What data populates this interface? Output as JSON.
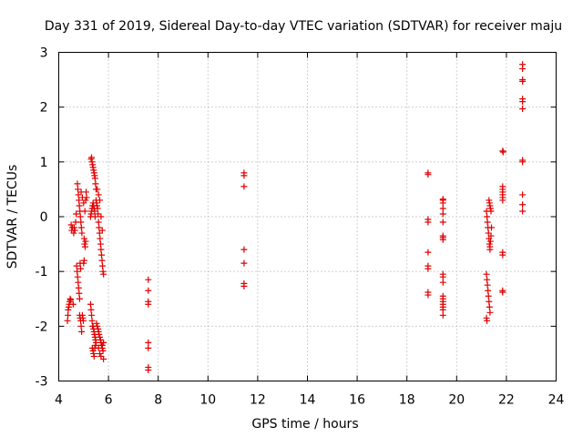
{
  "chart_data": {
    "type": "scatter",
    "title": "Day 331 of 2019, Sidereal Day-to-day VTEC variation (SDTVAR) for receiver maju",
    "xlabel": "GPS time / hours",
    "ylabel": "SDTVAR / TECUs",
    "xlim": [
      4,
      24
    ],
    "ylim": [
      -3,
      3
    ],
    "xticks": [
      4,
      6,
      8,
      10,
      12,
      14,
      16,
      18,
      20,
      22,
      24
    ],
    "yticks": [
      -3,
      -2,
      -1,
      0,
      1,
      2,
      3
    ],
    "grid": true,
    "marker": "plus",
    "marker_color": "#e00000",
    "series": [
      {
        "name": "SDTVAR",
        "points": [
          [
            4.35,
            -1.9
          ],
          [
            4.37,
            -1.8
          ],
          [
            4.38,
            -1.7
          ],
          [
            4.4,
            -1.65
          ],
          [
            4.42,
            -1.6
          ],
          [
            4.44,
            -1.55
          ],
          [
            4.46,
            -1.5
          ],
          [
            4.48,
            -1.52
          ],
          [
            4.5,
            -0.15
          ],
          [
            4.52,
            -0.25
          ],
          [
            4.55,
            -0.2
          ],
          [
            4.58,
            -1.6
          ],
          [
            4.6,
            -0.3
          ],
          [
            4.62,
            -0.2
          ],
          [
            4.65,
            -0.25
          ],
          [
            4.68,
            -0.1
          ],
          [
            4.7,
            0.05
          ],
          [
            4.72,
            -0.9
          ],
          [
            4.74,
            -1.0
          ],
          [
            4.76,
            -1.1
          ],
          [
            4.78,
            -1.2
          ],
          [
            4.8,
            -1.3
          ],
          [
            4.82,
            -1.4
          ],
          [
            4.84,
            -1.5
          ],
          [
            4.75,
            0.6
          ],
          [
            4.77,
            0.5
          ],
          [
            4.79,
            0.4
          ],
          [
            4.81,
            0.3
          ],
          [
            4.83,
            0.2
          ],
          [
            4.85,
            0.1
          ],
          [
            4.87,
            0.0
          ],
          [
            4.89,
            -0.1
          ],
          [
            4.91,
            -0.2
          ],
          [
            4.93,
            -0.3
          ],
          [
            4.86,
            -0.85
          ],
          [
            4.88,
            -0.95
          ],
          [
            4.84,
            -1.8
          ],
          [
            4.86,
            -1.85
          ],
          [
            4.88,
            -1.9
          ],
          [
            4.9,
            -2.0
          ],
          [
            4.92,
            -2.1
          ],
          [
            4.95,
            -1.8
          ],
          [
            4.97,
            -1.85
          ],
          [
            4.99,
            -1.9
          ],
          [
            4.9,
            0.45
          ],
          [
            4.95,
            0.35
          ],
          [
            5.0,
            0.25
          ],
          [
            5.02,
            -0.4
          ],
          [
            5.04,
            -0.5
          ],
          [
            5.06,
            -0.55
          ],
          [
            5.08,
            -0.45
          ],
          [
            5.0,
            -0.85
          ],
          [
            5.02,
            -0.8
          ],
          [
            5.05,
            0.1
          ],
          [
            5.08,
            0.3
          ],
          [
            5.1,
            0.45
          ],
          [
            5.12,
            0.35
          ],
          [
            5.3,
            1.05
          ],
          [
            5.32,
            1.08
          ],
          [
            5.34,
            1.0
          ],
          [
            5.36,
            0.95
          ],
          [
            5.38,
            0.9
          ],
          [
            5.4,
            0.85
          ],
          [
            5.42,
            0.8
          ],
          [
            5.44,
            0.75
          ],
          [
            5.46,
            0.7
          ],
          [
            5.48,
            0.6
          ],
          [
            5.5,
            0.5
          ],
          [
            5.28,
            0.0
          ],
          [
            5.3,
            0.05
          ],
          [
            5.32,
            0.1
          ],
          [
            5.34,
            0.15
          ],
          [
            5.36,
            0.2
          ],
          [
            5.38,
            0.25
          ],
          [
            5.4,
            0.2
          ],
          [
            5.42,
            0.15
          ],
          [
            5.44,
            0.1
          ],
          [
            5.46,
            0.0
          ],
          [
            5.28,
            -1.6
          ],
          [
            5.3,
            -1.7
          ],
          [
            5.32,
            -1.8
          ],
          [
            5.34,
            -1.9
          ],
          [
            5.36,
            -2.0
          ],
          [
            5.38,
            -2.0
          ],
          [
            5.4,
            -2.05
          ],
          [
            5.42,
            -2.1
          ],
          [
            5.44,
            -2.15
          ],
          [
            5.46,
            -2.2
          ],
          [
            5.48,
            -2.25
          ],
          [
            5.5,
            -2.3
          ],
          [
            5.35,
            -2.4
          ],
          [
            5.38,
            -2.45
          ],
          [
            5.4,
            -2.5
          ],
          [
            5.42,
            -2.55
          ],
          [
            5.45,
            -2.4
          ],
          [
            5.48,
            -2.35
          ],
          [
            5.5,
            0.3
          ],
          [
            5.52,
            0.25
          ],
          [
            5.54,
            0.2
          ],
          [
            5.56,
            0.15
          ],
          [
            5.58,
            0.05
          ],
          [
            5.6,
            -0.1
          ],
          [
            5.62,
            -0.2
          ],
          [
            5.64,
            -0.3
          ],
          [
            5.66,
            -0.4
          ],
          [
            5.68,
            -0.5
          ],
          [
            5.7,
            -0.6
          ],
          [
            5.72,
            -0.7
          ],
          [
            5.74,
            -0.8
          ],
          [
            5.76,
            -0.9
          ],
          [
            5.78,
            -1.0
          ],
          [
            5.8,
            -1.05
          ],
          [
            5.55,
            0.5
          ],
          [
            5.6,
            0.4
          ],
          [
            5.65,
            0.3
          ],
          [
            5.7,
            0.0
          ],
          [
            5.75,
            -0.25
          ],
          [
            5.52,
            -1.95
          ],
          [
            5.55,
            -2.0
          ],
          [
            5.58,
            -2.05
          ],
          [
            5.6,
            -2.1
          ],
          [
            5.62,
            -2.15
          ],
          [
            5.65,
            -2.2
          ],
          [
            5.68,
            -2.25
          ],
          [
            5.7,
            -2.3
          ],
          [
            5.72,
            -2.35
          ],
          [
            5.75,
            -2.4
          ],
          [
            5.78,
            -2.45
          ],
          [
            5.8,
            -2.6
          ],
          [
            5.6,
            -2.4
          ],
          [
            5.65,
            -2.5
          ],
          [
            5.7,
            -2.55
          ],
          [
            5.75,
            -2.35
          ],
          [
            5.8,
            -2.3
          ],
          [
            7.6,
            -1.15
          ],
          [
            7.6,
            -1.35
          ],
          [
            7.6,
            -1.55
          ],
          [
            7.6,
            -1.6
          ],
          [
            7.6,
            -2.3
          ],
          [
            7.6,
            -2.4
          ],
          [
            7.6,
            -2.75
          ],
          [
            7.6,
            -2.8
          ],
          [
            11.45,
            0.8
          ],
          [
            11.45,
            0.75
          ],
          [
            11.45,
            0.55
          ],
          [
            11.45,
            -0.6
          ],
          [
            11.45,
            -0.85
          ],
          [
            11.45,
            -1.22
          ],
          [
            11.45,
            -1.27
          ],
          [
            18.85,
            0.8
          ],
          [
            18.85,
            0.77
          ],
          [
            18.85,
            -0.05
          ],
          [
            18.85,
            -0.1
          ],
          [
            18.85,
            -0.65
          ],
          [
            18.85,
            -0.9
          ],
          [
            18.85,
            -0.95
          ],
          [
            18.85,
            -1.38
          ],
          [
            18.85,
            -1.43
          ],
          [
            19.45,
            0.32
          ],
          [
            19.45,
            0.3
          ],
          [
            19.45,
            0.25
          ],
          [
            19.45,
            0.15
          ],
          [
            19.45,
            0.05
          ],
          [
            19.45,
            -0.1
          ],
          [
            19.45,
            -0.35
          ],
          [
            19.45,
            -0.38
          ],
          [
            19.45,
            -0.42
          ],
          [
            19.45,
            -1.05
          ],
          [
            19.45,
            -1.1
          ],
          [
            19.45,
            -1.2
          ],
          [
            19.45,
            -1.45
          ],
          [
            19.45,
            -1.5
          ],
          [
            19.45,
            -1.55
          ],
          [
            19.45,
            -1.6
          ],
          [
            19.45,
            -1.65
          ],
          [
            19.45,
            -1.7
          ],
          [
            19.45,
            -1.8
          ],
          [
            21.2,
            0.1
          ],
          [
            21.22,
            0.0
          ],
          [
            21.24,
            -0.1
          ],
          [
            21.26,
            -0.2
          ],
          [
            21.28,
            -0.3
          ],
          [
            21.3,
            -0.4
          ],
          [
            21.32,
            -0.5
          ],
          [
            21.34,
            -0.6
          ],
          [
            21.2,
            -1.05
          ],
          [
            21.22,
            -1.15
          ],
          [
            21.24,
            -1.25
          ],
          [
            21.26,
            -1.35
          ],
          [
            21.28,
            -1.45
          ],
          [
            21.3,
            -1.55
          ],
          [
            21.32,
            -1.65
          ],
          [
            21.34,
            -1.75
          ],
          [
            21.2,
            -1.85
          ],
          [
            21.22,
            -1.9
          ],
          [
            21.3,
            0.3
          ],
          [
            21.32,
            0.25
          ],
          [
            21.34,
            0.2
          ],
          [
            21.36,
            0.15
          ],
          [
            21.38,
            0.1
          ],
          [
            21.4,
            -0.2
          ],
          [
            21.38,
            -0.35
          ],
          [
            21.36,
            -0.45
          ],
          [
            21.34,
            -0.55
          ],
          [
            21.85,
            1.2
          ],
          [
            21.87,
            1.18
          ],
          [
            21.85,
            0.55
          ],
          [
            21.85,
            0.5
          ],
          [
            21.85,
            0.45
          ],
          [
            21.85,
            0.4
          ],
          [
            21.85,
            0.35
          ],
          [
            21.85,
            0.3
          ],
          [
            21.85,
            -0.65
          ],
          [
            21.85,
            -0.7
          ],
          [
            21.85,
            -1.35
          ],
          [
            21.85,
            -1.38
          ],
          [
            22.65,
            2.78
          ],
          [
            22.65,
            2.7
          ],
          [
            22.65,
            2.5
          ],
          [
            22.65,
            2.47
          ],
          [
            22.65,
            2.15
          ],
          [
            22.65,
            2.1
          ],
          [
            22.65,
            1.97
          ],
          [
            22.65,
            1.03
          ],
          [
            22.65,
            1.0
          ],
          [
            22.65,
            0.4
          ],
          [
            22.65,
            0.22
          ],
          [
            22.65,
            0.1
          ]
        ]
      }
    ]
  }
}
